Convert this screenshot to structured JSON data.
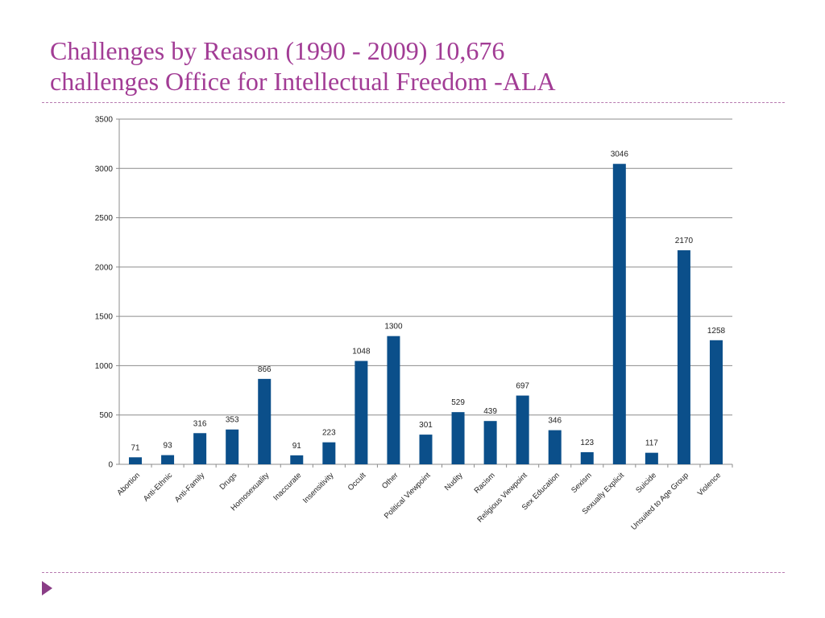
{
  "slide": {
    "title_line1": "Challenges by Reason (1990 - 2009) 10,676",
    "title_line2": "challenges Office for Intellectual Freedom -ALA"
  },
  "chart_data": {
    "type": "bar",
    "categories": [
      "Abortion",
      "Anti-Ethnic",
      "Anti-Family",
      "Drugs",
      "Homosexuality",
      "Inaccurate",
      "Insensitivity",
      "Occult",
      "Other",
      "Political Viewpoint",
      "Nudity",
      "Racism",
      "Religious Viewpoint",
      "Sex Education",
      "Sexism",
      "Sexually Explicit",
      "Suicide",
      "Unsuited to Age Group",
      "Violence"
    ],
    "values": [
      71,
      93,
      316,
      353,
      866,
      91,
      223,
      1048,
      1300,
      301,
      529,
      439,
      697,
      346,
      123,
      3046,
      117,
      2170,
      1258
    ],
    "ylim": [
      0,
      3500
    ],
    "yticks": [
      0,
      500,
      1000,
      1500,
      2000,
      2500,
      3000,
      3500
    ],
    "grid": true,
    "legend": "none",
    "bar_color": "#0b4f8a",
    "data_labels": true
  }
}
